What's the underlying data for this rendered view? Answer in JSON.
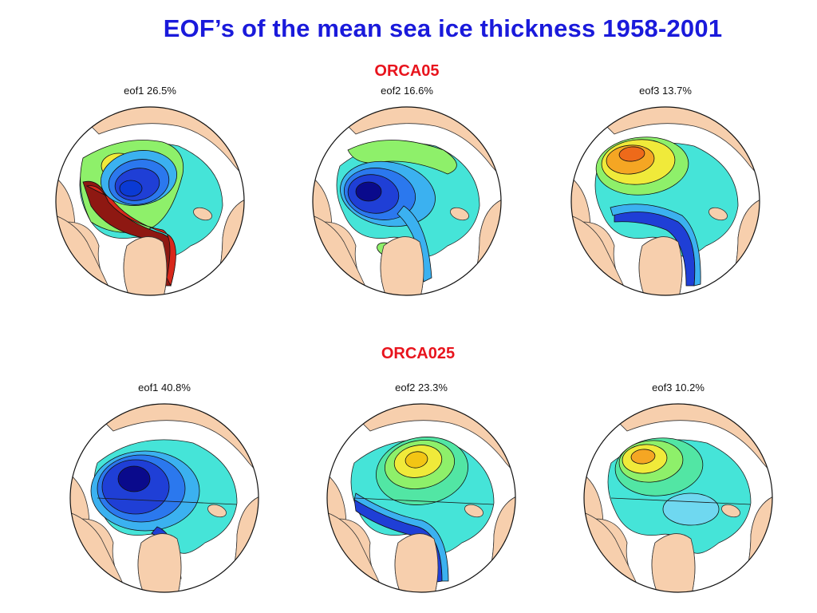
{
  "title": "EOF’s of the mean sea ice thickness 1958-2001",
  "colors": {
    "title": "#1a1adb",
    "section_label": "#e8141d",
    "land": "#f7cfad",
    "ocean_cyan": "#45e4d8"
  },
  "rows": [
    {
      "label": "ORCA05",
      "panels": [
        {
          "caption": "eof1 26.5%",
          "pattern": "eof1-orca05"
        },
        {
          "caption": "eof2 16.6%",
          "pattern": "eof2-orca05"
        },
        {
          "caption": "eof3 13.7%",
          "pattern": "eof3-orca05"
        }
      ]
    },
    {
      "label": "ORCA025",
      "panels": [
        {
          "caption": "eof1 40.8%",
          "pattern": "eof1-orca025"
        },
        {
          "caption": "eof2 23.3%",
          "pattern": "eof2-orca025"
        },
        {
          "caption": "eof3 10.2%",
          "pattern": "eof3-orca025"
        }
      ]
    }
  ]
}
